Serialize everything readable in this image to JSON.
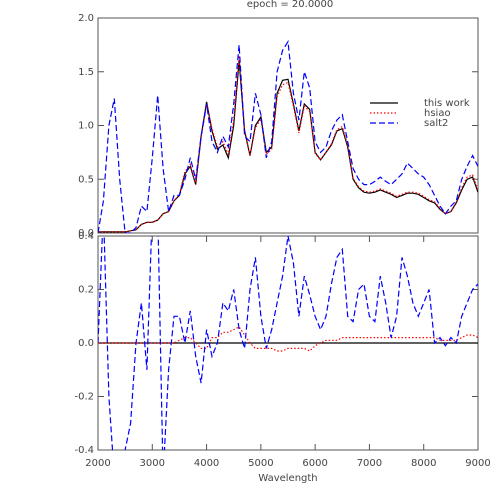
{
  "chart_data": [
    {
      "type": "line",
      "title": "epoch =   20.0000",
      "x": [
        2000,
        2100,
        2200,
        2300,
        2400,
        2500,
        2600,
        2700,
        2800,
        2900,
        3000,
        3100,
        3200,
        3300,
        3400,
        3500,
        3600,
        3700,
        3800,
        3900,
        4000,
        4100,
        4200,
        4300,
        4400,
        4500,
        4600,
        4700,
        4800,
        4900,
        5000,
        5100,
        5200,
        5300,
        5400,
        5500,
        5600,
        5700,
        5800,
        5900,
        6000,
        6100,
        6200,
        6300,
        6400,
        6500,
        6600,
        6700,
        6800,
        6900,
        7000,
        7100,
        7200,
        7300,
        7400,
        7500,
        7600,
        7700,
        7800,
        7900,
        8000,
        8100,
        8200,
        8300,
        8400,
        8500,
        8600,
        8700,
        8800,
        8900,
        9000
      ],
      "series": [
        {
          "name": "this work",
          "color": "#000000",
          "style": "solid",
          "values": [
            0.01,
            0.01,
            0.01,
            0.01,
            0.01,
            0.01,
            0.02,
            0.03,
            0.08,
            0.1,
            0.1,
            0.12,
            0.18,
            0.2,
            0.3,
            0.35,
            0.55,
            0.62,
            0.45,
            0.9,
            1.22,
            0.95,
            0.78,
            0.82,
            0.7,
            1.0,
            1.6,
            0.95,
            0.72,
            1.0,
            1.08,
            0.75,
            0.8,
            1.3,
            1.42,
            1.43,
            1.2,
            0.95,
            1.2,
            1.15,
            0.75,
            0.68,
            0.75,
            0.82,
            0.95,
            0.97,
            0.8,
            0.5,
            0.42,
            0.38,
            0.37,
            0.38,
            0.4,
            0.38,
            0.36,
            0.33,
            0.35,
            0.37,
            0.37,
            0.36,
            0.33,
            0.3,
            0.28,
            0.22,
            0.18,
            0.2,
            0.28,
            0.4,
            0.5,
            0.52,
            0.38
          ]
        },
        {
          "name": "hsiao",
          "color": "#ff0000",
          "style": "dotted",
          "values": [
            0.01,
            0.01,
            0.01,
            0.01,
            0.01,
            0.01,
            0.02,
            0.03,
            0.08,
            0.1,
            0.1,
            0.12,
            0.18,
            0.2,
            0.3,
            0.36,
            0.57,
            0.64,
            0.45,
            0.88,
            1.2,
            0.97,
            0.8,
            0.85,
            0.73,
            1.05,
            1.65,
            0.96,
            0.72,
            0.98,
            1.06,
            0.73,
            0.78,
            1.27,
            1.38,
            1.4,
            1.18,
            0.93,
            1.18,
            1.13,
            0.74,
            0.68,
            0.75,
            0.83,
            0.96,
            0.99,
            0.82,
            0.51,
            0.43,
            0.39,
            0.38,
            0.39,
            0.41,
            0.39,
            0.37,
            0.34,
            0.36,
            0.38,
            0.38,
            0.37,
            0.34,
            0.31,
            0.29,
            0.23,
            0.18,
            0.2,
            0.29,
            0.42,
            0.52,
            0.54,
            0.4
          ]
        },
        {
          "name": "salt2",
          "color": "#0000ff",
          "style": "dashed",
          "values": [
            0.0,
            0.3,
            1.0,
            1.25,
            0.5,
            0.0,
            0.0,
            0.05,
            0.25,
            0.2,
            0.7,
            1.28,
            0.6,
            0.2,
            0.35,
            0.35,
            0.5,
            0.7,
            0.5,
            0.9,
            1.2,
            0.85,
            0.75,
            0.9,
            0.8,
            1.2,
            1.75,
            0.9,
            0.85,
            1.3,
            1.1,
            0.7,
            0.85,
            1.5,
            1.7,
            1.78,
            1.3,
            1.05,
            1.5,
            1.35,
            0.85,
            0.75,
            0.8,
            0.95,
            1.05,
            1.1,
            0.85,
            0.6,
            0.5,
            0.45,
            0.45,
            0.48,
            0.52,
            0.48,
            0.45,
            0.5,
            0.55,
            0.65,
            0.6,
            0.55,
            0.52,
            0.45,
            0.35,
            0.25,
            0.18,
            0.25,
            0.3,
            0.5,
            0.62,
            0.72,
            0.62
          ]
        }
      ],
      "xlim": [
        2000,
        9000
      ],
      "ylim": [
        0,
        2
      ],
      "yticks": [
        {
          "value": 0,
          "label": "0.0"
        },
        {
          "value": 0.5,
          "label": "0.5"
        },
        {
          "value": 1,
          "label": "1.0"
        },
        {
          "value": 1.5,
          "label": "1.5"
        },
        {
          "value": 2,
          "label": "2.0"
        }
      ],
      "legend": "right",
      "grid": false
    },
    {
      "type": "line",
      "xlabel": "Wavelength",
      "x": [
        2000,
        2100,
        2200,
        2300,
        2400,
        2500,
        2600,
        2700,
        2800,
        2900,
        3000,
        3100,
        3200,
        3300,
        3400,
        3500,
        3600,
        3700,
        3800,
        3900,
        4000,
        4100,
        4200,
        4300,
        4400,
        4500,
        4600,
        4700,
        4800,
        4900,
        5000,
        5100,
        5200,
        5300,
        5400,
        5500,
        5600,
        5700,
        5800,
        5900,
        6000,
        6100,
        6200,
        6300,
        6400,
        6500,
        6600,
        6700,
        6800,
        6900,
        7000,
        7100,
        7200,
        7300,
        7400,
        7500,
        7600,
        7700,
        7800,
        7900,
        8000,
        8100,
        8200,
        8300,
        8400,
        8500,
        8600,
        8700,
        8800,
        8900,
        9000
      ],
      "series": [
        {
          "color": "#ff0000",
          "style": "dotted",
          "values": [
            0,
            0,
            0,
            0,
            0,
            0,
            0,
            0,
            0,
            0,
            0,
            0,
            0,
            0,
            0,
            0.01,
            0.02,
            0.02,
            0,
            -0.02,
            -0.02,
            0.02,
            0.02,
            0.04,
            0.04,
            0.05,
            0.06,
            0.03,
            0,
            -0.02,
            -0.02,
            -0.02,
            -0.02,
            -0.03,
            -0.03,
            -0.02,
            -0.02,
            -0.02,
            -0.02,
            -0.03,
            -0.01,
            0,
            0.01,
            0.01,
            0.01,
            0.02,
            0.02,
            0.02,
            0.02,
            0.02,
            0.02,
            0.02,
            0.02,
            0.02,
            0.02,
            0.02,
            0.02,
            0.02,
            0.02,
            0.02,
            0.02,
            0.02,
            0.02,
            0.01,
            0.01,
            0.01,
            0.01,
            0.02,
            0.03,
            0.03,
            0.02
          ]
        },
        {
          "color": "#0000ff",
          "style": "dashed",
          "values": [
            0.0,
            0.5,
            -0.2,
            -0.5,
            -0.5,
            -0.4,
            -0.3,
            0.0,
            0.15,
            -0.1,
            0.5,
            0.5,
            -0.5,
            -0.1,
            0.1,
            0.1,
            0.0,
            0.12,
            -0.05,
            -0.15,
            0.05,
            -0.05,
            0.0,
            0.15,
            0.12,
            0.2,
            0.05,
            -0.02,
            0.2,
            0.32,
            0.1,
            -0.02,
            0.05,
            0.15,
            0.25,
            0.4,
            0.3,
            0.1,
            0.25,
            0.18,
            0.1,
            0.05,
            0.1,
            0.22,
            0.32,
            0.35,
            0.1,
            0.08,
            0.2,
            0.22,
            0.1,
            0.08,
            0.25,
            0.15,
            0.02,
            0.1,
            0.32,
            0.25,
            0.15,
            0.1,
            0.15,
            0.2,
            0.0,
            0.02,
            -0.01,
            0.02,
            0.0,
            0.1,
            0.15,
            0.2,
            0.22
          ]
        }
      ],
      "xlim": [
        2000,
        9000
      ],
      "xticks": [
        2000,
        3000,
        4000,
        5000,
        6000,
        7000,
        8000,
        9000
      ],
      "ylim": [
        -0.4,
        0.4
      ],
      "yticks": [
        {
          "value": 0.4,
          "label": "0.4"
        },
        {
          "value": 0.2,
          "label": "0.2"
        },
        {
          "value": 0,
          "label": "0.0"
        },
        {
          "value": -0.2,
          "label": "-0.2"
        },
        {
          "value": -0.4,
          "label": "-0.4"
        }
      ],
      "grid": false
    }
  ]
}
